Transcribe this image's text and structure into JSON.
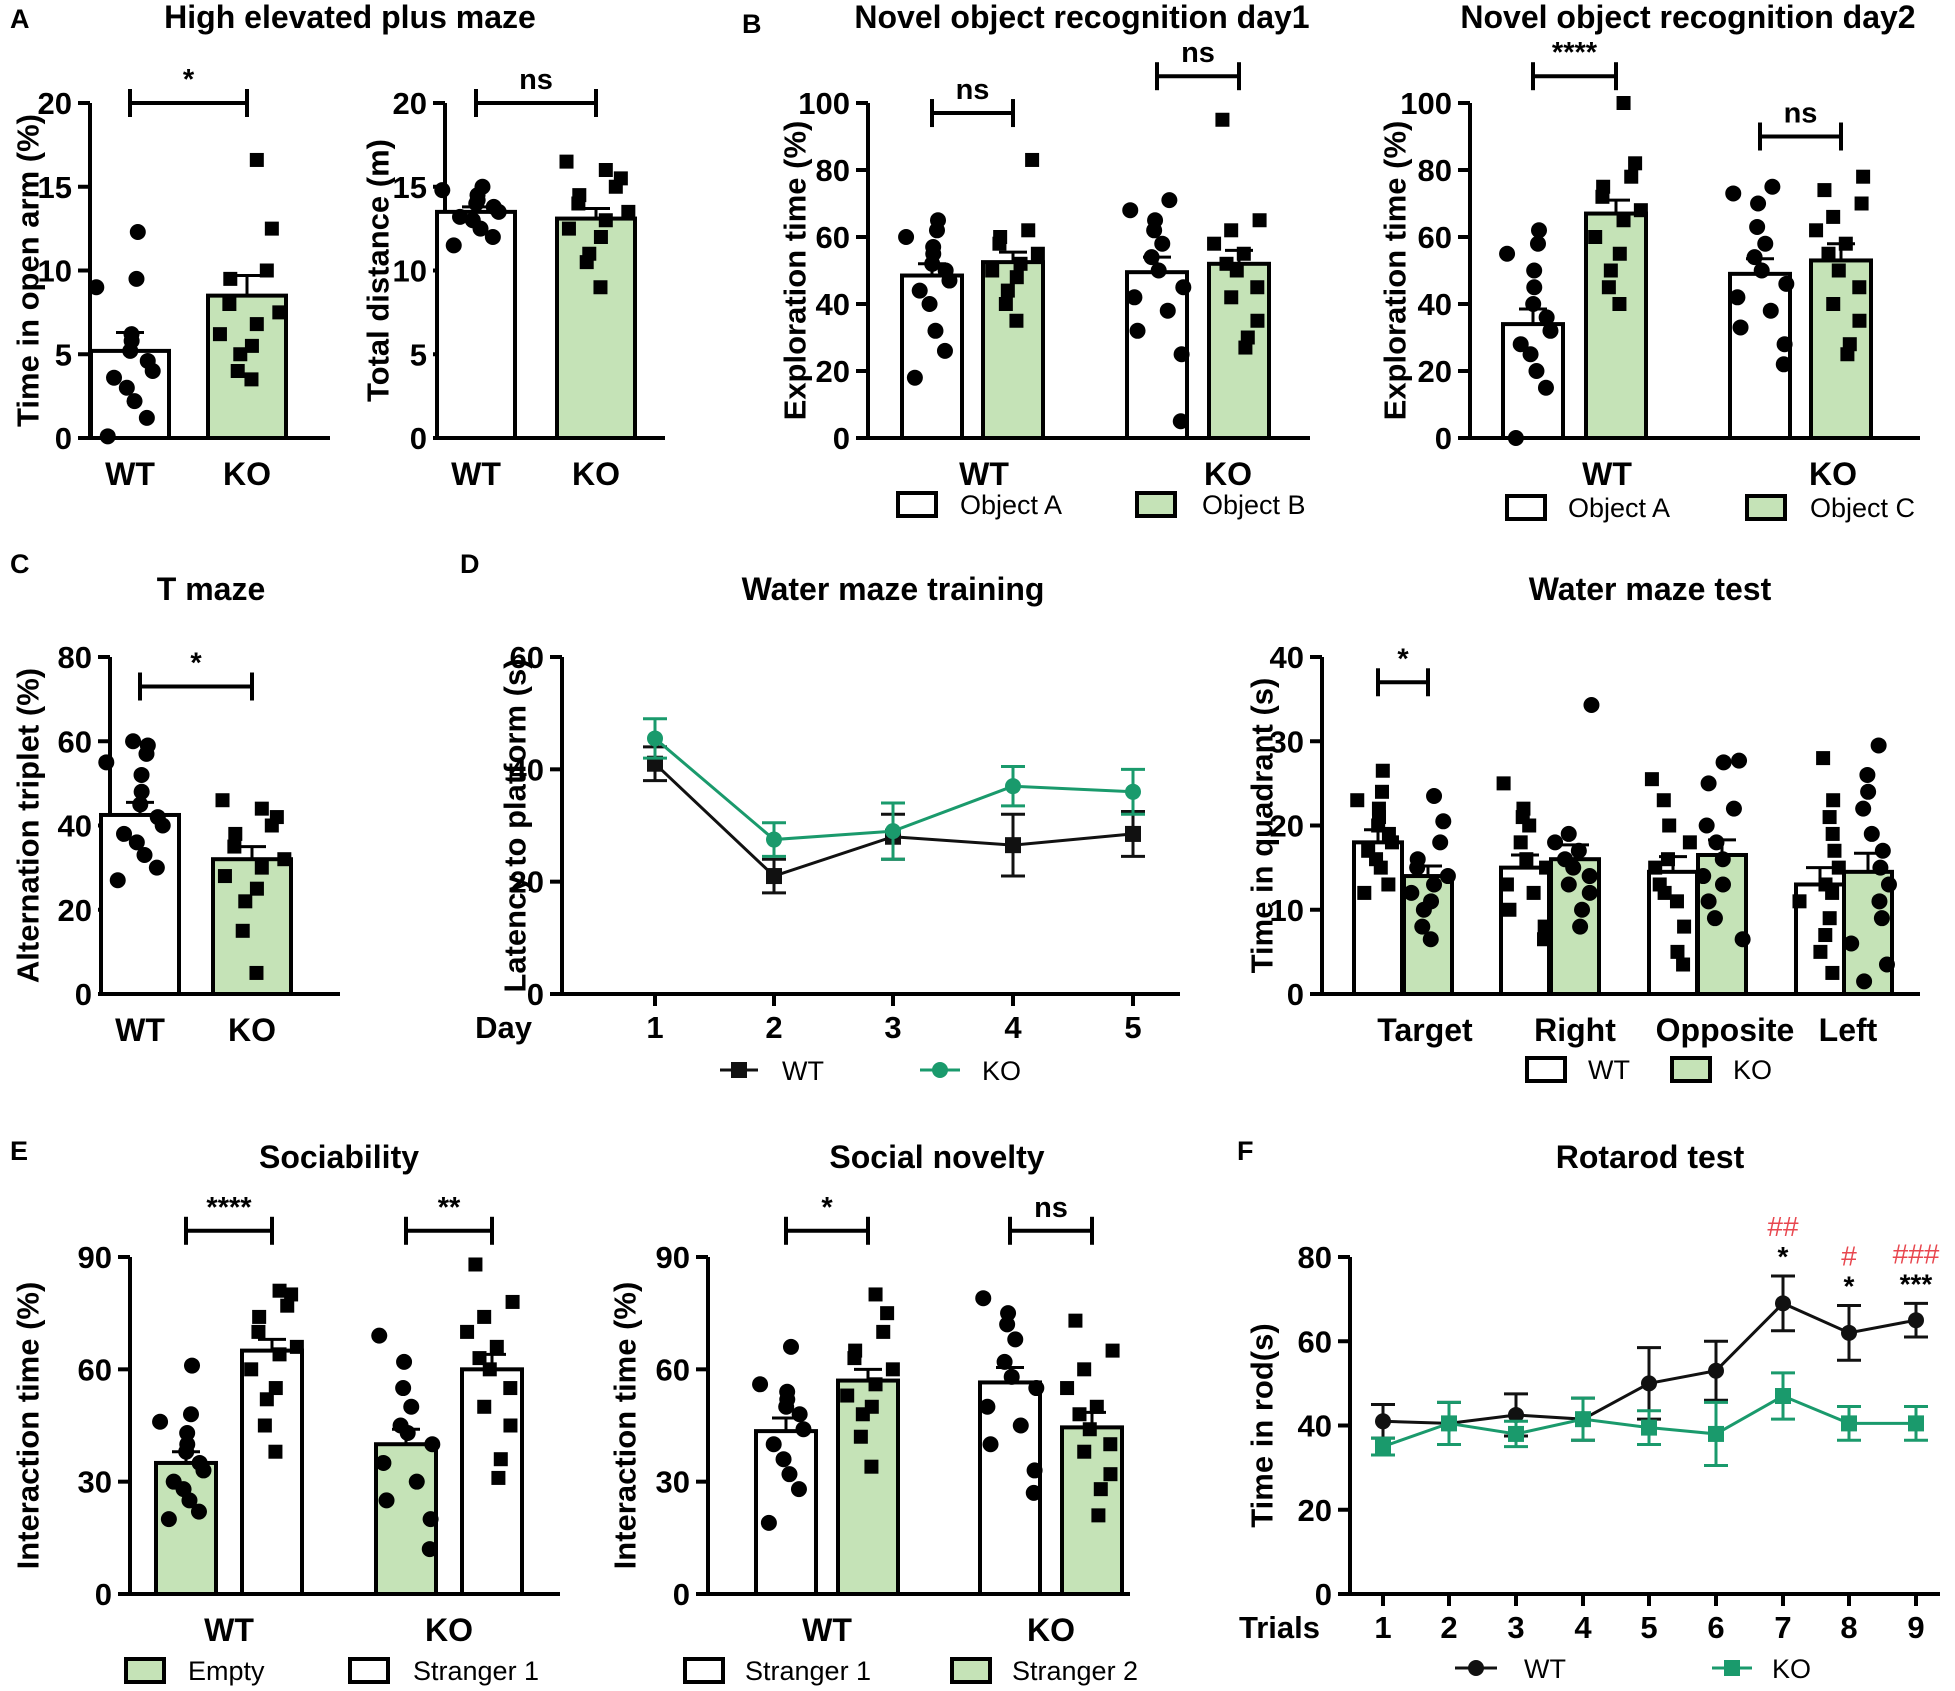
{
  "colors": {
    "ko_fill": "#c5e3b7",
    "ko_line": "#1a9a6c",
    "wt_line": "#111111",
    "hash": "#e8474f"
  },
  "legends": {
    "object_a": "Object A",
    "object_b": "Object B",
    "object_c": "Object C",
    "wt": "WT",
    "ko": "KO",
    "empty": "Empty",
    "stranger1": "Stranger 1",
    "stranger2": "Stranger 2"
  },
  "chart_data": [
    {
      "id": "a1",
      "panel": "A",
      "title": "High elevated plus maze",
      "type": "bar",
      "ylabel": "Time in open arm (%)",
      "ylim": [
        0,
        20
      ],
      "yticks": [
        0,
        5,
        10,
        15,
        20
      ],
      "categories": [
        "WT",
        "KO"
      ],
      "series": [
        {
          "name": "WT",
          "group": "WT",
          "fill": "white",
          "marker": "circle",
          "value": 5.2,
          "sem": 1.1,
          "points": [
            0.1,
            1.2,
            2.2,
            3.0,
            3.6,
            4.0,
            4.6,
            5.2,
            5.8,
            6.2,
            9.0,
            9.5,
            12.3
          ]
        },
        {
          "name": "KO",
          "group": "KO",
          "fill": "green",
          "marker": "square",
          "value": 8.5,
          "sem": 1.2,
          "points": [
            3.5,
            4.0,
            5.0,
            5.5,
            6.2,
            6.8,
            7.5,
            8.0,
            9.5,
            10.0,
            12.5,
            16.6
          ]
        }
      ],
      "sig": [
        {
          "from": 0,
          "to": 1,
          "label": "*",
          "y": 20
        }
      ]
    },
    {
      "id": "a2",
      "panel": "",
      "title": "",
      "type": "bar",
      "ylabel": "Total distance (m)",
      "ylim": [
        0,
        20
      ],
      "yticks": [
        0,
        5,
        10,
        15,
        20
      ],
      "categories": [
        "WT",
        "KO"
      ],
      "series": [
        {
          "name": "WT",
          "group": "WT",
          "fill": "white",
          "marker": "circle",
          "value": 13.5,
          "sem": 0.3,
          "points": [
            11.5,
            12.0,
            12.5,
            13.0,
            13.2,
            13.5,
            13.8,
            14.0,
            14.2,
            14.5,
            14.8,
            15.0
          ]
        },
        {
          "name": "KO",
          "group": "KO",
          "fill": "green",
          "marker": "square",
          "value": 13.1,
          "sem": 0.6,
          "points": [
            9.0,
            10.5,
            11.0,
            12.0,
            12.5,
            13.0,
            13.5,
            14.0,
            14.5,
            15.0,
            15.5,
            16.0,
            16.5
          ]
        }
      ],
      "sig": [
        {
          "from": 0,
          "to": 1,
          "label": "ns",
          "y": 20
        }
      ]
    },
    {
      "id": "b1",
      "panel": "B",
      "title": "Novel object recognition day1",
      "type": "bar",
      "ylabel": "Exploration time (%)",
      "ylim": [
        0,
        100
      ],
      "yticks": [
        0,
        20,
        40,
        60,
        80,
        100
      ],
      "categories": [
        "WT",
        "KO"
      ],
      "series": [
        {
          "name": "Object A",
          "group": "WT",
          "fill": "white",
          "marker": "circle",
          "value": 48.5,
          "sem": 3.5,
          "points": [
            18,
            26,
            32,
            40,
            44,
            47,
            50,
            52,
            55,
            57,
            60,
            62,
            65
          ]
        },
        {
          "name": "Object B",
          "group": "WT",
          "fill": "green",
          "marker": "square",
          "value": 52.5,
          "sem": 3.0,
          "points": [
            35,
            40,
            44,
            48,
            50,
            52,
            55,
            58,
            60,
            62,
            83
          ]
        },
        {
          "name": "Object A",
          "group": "KO",
          "fill": "white",
          "marker": "circle",
          "value": 49.5,
          "sem": 4.5,
          "points": [
            5,
            25,
            32,
            38,
            42,
            45,
            50,
            54,
            58,
            62,
            65,
            68,
            71
          ]
        },
        {
          "name": "Object B",
          "group": "KO",
          "fill": "green",
          "marker": "square",
          "value": 52.0,
          "sem": 4.0,
          "points": [
            27,
            30,
            35,
            42,
            45,
            50,
            52,
            55,
            58,
            62,
            65,
            95
          ]
        }
      ],
      "sig": [
        {
          "from": 0,
          "to": 1,
          "label": "ns",
          "y": 97
        },
        {
          "from": 2,
          "to": 3,
          "label": "ns",
          "y": 108
        }
      ]
    },
    {
      "id": "b2",
      "panel": "",
      "title": "Novel object recognition day2",
      "type": "bar",
      "ylabel": "Exploration time (%)",
      "ylim": [
        0,
        100
      ],
      "yticks": [
        0,
        20,
        40,
        60,
        80,
        100
      ],
      "categories": [
        "WT",
        "KO"
      ],
      "series": [
        {
          "name": "Object A",
          "group": "WT",
          "fill": "white",
          "marker": "circle",
          "value": 34.0,
          "sem": 4.5,
          "points": [
            0,
            15,
            20,
            25,
            28,
            32,
            36,
            40,
            45,
            50,
            55,
            58,
            62
          ]
        },
        {
          "name": "Object C",
          "group": "WT",
          "fill": "green",
          "marker": "square",
          "value": 67.0,
          "sem": 4.0,
          "points": [
            40,
            45,
            50,
            55,
            60,
            65,
            68,
            72,
            75,
            78,
            82,
            100
          ]
        },
        {
          "name": "Object A",
          "group": "KO",
          "fill": "white",
          "marker": "circle",
          "value": 49.0,
          "sem": 4.5,
          "points": [
            22,
            28,
            33,
            38,
            42,
            46,
            50,
            54,
            58,
            63,
            70,
            73,
            75
          ]
        },
        {
          "name": "Object C",
          "group": "KO",
          "fill": "green",
          "marker": "square",
          "value": 53.0,
          "sem": 5.0,
          "points": [
            25,
            28,
            35,
            40,
            45,
            50,
            55,
            58,
            62,
            66,
            70,
            74,
            78
          ]
        }
      ],
      "sig": [
        {
          "from": 0,
          "to": 1,
          "label": "****",
          "y": 108
        },
        {
          "from": 2,
          "to": 3,
          "label": "ns",
          "y": 90
        }
      ]
    },
    {
      "id": "c",
      "panel": "C",
      "title": "T maze",
      "type": "bar",
      "ylabel": "Alternation triplet (%)",
      "ylim": [
        0,
        80
      ],
      "yticks": [
        0,
        20,
        40,
        60,
        80
      ],
      "categories": [
        "WT",
        "KO"
      ],
      "series": [
        {
          "name": "WT",
          "group": "WT",
          "fill": "white",
          "marker": "circle",
          "value": 42.5,
          "sem": 3.0,
          "points": [
            27,
            30,
            33,
            36,
            38,
            40,
            42,
            45,
            48,
            52,
            55,
            57,
            59,
            60
          ]
        },
        {
          "name": "KO",
          "group": "KO",
          "fill": "green",
          "marker": "square",
          "value": 32.0,
          "sem": 3.0,
          "points": [
            5,
            15,
            22,
            25,
            28,
            30,
            32,
            35,
            38,
            40,
            42,
            44,
            46
          ]
        }
      ],
      "sig": [
        {
          "from": 0,
          "to": 1,
          "label": "*",
          "y": 73
        }
      ]
    },
    {
      "id": "d1",
      "panel": "D",
      "title": "Water maze training",
      "type": "line",
      "ylabel": "Latency to platform (s)",
      "xlabel": "Day",
      "ylim": [
        0,
        60
      ],
      "yticks": [
        0,
        20,
        40,
        60
      ],
      "x": [
        "1",
        "2",
        "3",
        "4",
        "5"
      ],
      "series": [
        {
          "name": "WT",
          "marker": "square",
          "color": "wt",
          "values": [
            41,
            21,
            28,
            26.5,
            28.5
          ],
          "err": [
            3,
            3,
            4,
            5.5,
            4
          ]
        },
        {
          "name": "KO",
          "marker": "circle",
          "color": "ko",
          "values": [
            45.5,
            27.5,
            29,
            37,
            36
          ],
          "err": [
            3.5,
            3,
            5,
            3.5,
            4
          ]
        }
      ]
    },
    {
      "id": "d2",
      "panel": "",
      "title": "Water maze test",
      "type": "bar",
      "ylabel": "Time in quadrant (s)",
      "ylim": [
        0,
        40
      ],
      "yticks": [
        0,
        10,
        20,
        30,
        40
      ],
      "categories": [
        "Target",
        "Right",
        "Opposite",
        "Left"
      ],
      "series": [
        {
          "name": "WT",
          "group": "Target",
          "fill": "white",
          "marker": "square",
          "value": 18.0,
          "sem": 1.5,
          "points": [
            12,
            13,
            15,
            16,
            17,
            18,
            19,
            20,
            21,
            22,
            23,
            24,
            26.5
          ]
        },
        {
          "name": "KO",
          "group": "Target",
          "fill": "green",
          "marker": "circle",
          "value": 14.0,
          "sem": 1.2,
          "points": [
            6.5,
            8,
            10,
            11,
            12,
            13,
            14,
            15,
            16,
            18,
            20.5,
            23.5
          ]
        },
        {
          "name": "WT",
          "group": "Right",
          "fill": "white",
          "marker": "square",
          "value": 15.0,
          "sem": 1.5,
          "points": [
            6.5,
            8,
            10,
            12,
            13,
            15,
            16,
            18,
            20,
            21,
            22,
            25
          ]
        },
        {
          "name": "KO",
          "group": "Right",
          "fill": "green",
          "marker": "circle",
          "value": 16.0,
          "sem": 1.7,
          "points": [
            8,
            10,
            12,
            13,
            14,
            15,
            16,
            17,
            18,
            19,
            34.3
          ]
        },
        {
          "name": "WT",
          "group": "Opposite",
          "fill": "white",
          "marker": "square",
          "value": 14.5,
          "sem": 1.8,
          "points": [
            3.5,
            5,
            8,
            11,
            12,
            13,
            15,
            16,
            18,
            20,
            23,
            25.5
          ]
        },
        {
          "name": "KO",
          "group": "Opposite",
          "fill": "green",
          "marker": "circle",
          "value": 16.5,
          "sem": 1.8,
          "points": [
            6.5,
            9,
            11,
            13,
            14,
            16,
            18,
            20,
            22,
            25,
            27.5,
            27.7
          ]
        },
        {
          "name": "WT",
          "group": "Left",
          "fill": "white",
          "marker": "square",
          "value": 13.0,
          "sem": 2.0,
          "points": [
            2.5,
            5,
            7,
            9,
            11,
            12,
            13,
            15,
            17,
            19,
            21,
            23,
            28
          ]
        },
        {
          "name": "KO",
          "group": "Left",
          "fill": "green",
          "marker": "circle",
          "value": 14.5,
          "sem": 2.2,
          "points": [
            1.5,
            3.5,
            6,
            9,
            11,
            13,
            15,
            17,
            19,
            22,
            24,
            26,
            29.5
          ]
        }
      ],
      "sig": [
        {
          "from": 0,
          "to": 1,
          "label": "*",
          "y": 37
        }
      ]
    },
    {
      "id": "e1",
      "panel": "E",
      "title": "Sociability",
      "type": "bar",
      "ylabel": "Interaction time (%)",
      "ylim": [
        0,
        90
      ],
      "yticks": [
        0,
        30,
        60,
        90
      ],
      "categories": [
        "WT",
        "KO"
      ],
      "series": [
        {
          "name": "Empty",
          "group": "WT",
          "fill": "green",
          "marker": "circle",
          "value": 35.0,
          "sem": 3.0,
          "points": [
            20,
            22,
            25,
            28,
            30,
            33,
            35,
            38,
            40,
            43,
            46,
            48,
            61
          ]
        },
        {
          "name": "Stranger 1",
          "group": "WT",
          "fill": "white",
          "marker": "square",
          "value": 65.0,
          "sem": 3.0,
          "points": [
            38,
            45,
            52,
            55,
            60,
            64,
            66,
            70,
            74,
            77,
            80,
            81
          ]
        },
        {
          "name": "Empty",
          "group": "KO",
          "fill": "green",
          "marker": "circle",
          "value": 40.0,
          "sem": 4.0,
          "points": [
            12,
            20,
            25,
            30,
            35,
            40,
            43,
            45,
            50,
            55,
            62,
            69
          ]
        },
        {
          "name": "Stranger 1",
          "group": "KO",
          "fill": "white",
          "marker": "square",
          "value": 60.0,
          "sem": 4.0,
          "points": [
            31,
            36,
            45,
            50,
            55,
            60,
            63,
            66,
            70,
            74,
            78,
            88
          ]
        }
      ],
      "sig": [
        {
          "from": 0,
          "to": 1,
          "label": "****",
          "y": 97
        },
        {
          "from": 2,
          "to": 3,
          "label": "**",
          "y": 97
        }
      ]
    },
    {
      "id": "e2",
      "panel": "",
      "title": "Social novelty",
      "type": "bar",
      "ylabel": "Interaction time (%)",
      "ylim": [
        0,
        90
      ],
      "yticks": [
        0,
        30,
        60,
        90
      ],
      "categories": [
        "WT",
        "KO"
      ],
      "series": [
        {
          "name": "Stranger 1",
          "group": "WT",
          "fill": "white",
          "marker": "circle",
          "value": 43.5,
          "sem": 3.5,
          "points": [
            19,
            28,
            32,
            36,
            40,
            44,
            48,
            50,
            52,
            54,
            56,
            66
          ]
        },
        {
          "name": "Stranger 2",
          "group": "WT",
          "fill": "green",
          "marker": "square",
          "value": 57.0,
          "sem": 3.0,
          "points": [
            34,
            42,
            48,
            50,
            53,
            56,
            60,
            63,
            65,
            70,
            75,
            80
          ]
        },
        {
          "name": "Stranger 1",
          "group": "KO",
          "fill": "white",
          "marker": "circle",
          "value": 56.5,
          "sem": 4.0,
          "points": [
            27,
            33,
            40,
            45,
            50,
            55,
            58,
            62,
            68,
            72,
            75,
            79
          ]
        },
        {
          "name": "Stranger 2",
          "group": "KO",
          "fill": "green",
          "marker": "square",
          "value": 44.5,
          "sem": 4.0,
          "points": [
            21,
            28,
            32,
            38,
            40,
            44,
            48,
            50,
            55,
            60,
            65,
            73
          ]
        }
      ],
      "sig": [
        {
          "from": 0,
          "to": 1,
          "label": "*",
          "y": 97
        },
        {
          "from": 2,
          "to": 3,
          "label": "ns",
          "y": 97
        }
      ]
    },
    {
      "id": "f",
      "panel": "F",
      "title": "Rotarod test",
      "type": "line",
      "ylabel": "Time in rod(s)",
      "xlabel": "Trials",
      "ylim": [
        0,
        80
      ],
      "yticks": [
        0,
        20,
        40,
        60,
        80
      ],
      "x": [
        "1",
        "2",
        "3",
        "4",
        "5",
        "6",
        "7",
        "8",
        "9"
      ],
      "series": [
        {
          "name": "WT",
          "marker": "circle",
          "color": "wt",
          "values": [
            41,
            40.5,
            42.5,
            41.5,
            50,
            53,
            69,
            62,
            65
          ],
          "err": [
            4,
            5,
            5,
            5,
            8.5,
            7,
            6.5,
            6.5,
            4
          ]
        },
        {
          "name": "KO",
          "marker": "square",
          "color": "ko",
          "values": [
            35,
            40.5,
            38,
            41.5,
            39.5,
            38,
            47,
            40.5,
            40.5
          ],
          "err": [
            2,
            5,
            3,
            5,
            4,
            7.5,
            5.5,
            4,
            4
          ]
        }
      ],
      "annotations": [
        {
          "x": "7",
          "stars": "*",
          "hash": "##"
        },
        {
          "x": "8",
          "stars": "*",
          "hash": "#"
        },
        {
          "x": "9",
          "stars": "***",
          "hash": "###"
        }
      ]
    }
  ]
}
